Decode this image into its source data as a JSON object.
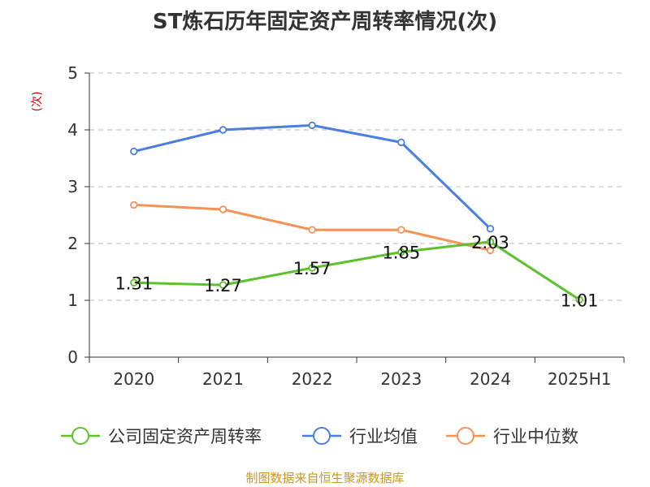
{
  "chart_data": {
    "type": "line",
    "title": "ST炼石历年固定资产周转率情况(次)",
    "ylabel": "(次)",
    "xlabel": "",
    "categories": [
      "2020",
      "2021",
      "2022",
      "2023",
      "2024",
      "2025H1"
    ],
    "ylim": [
      0,
      5
    ],
    "yticks": [
      "0",
      "1",
      "2",
      "3",
      "4",
      "5"
    ],
    "grid": true,
    "legend_position": "bottom",
    "series": [
      {
        "name": "公司固定资产周转率",
        "color": "#5cc12a",
        "values": [
          1.31,
          1.27,
          1.57,
          1.85,
          2.03,
          1.01
        ],
        "labels": [
          "1.31",
          "1.27",
          "1.57",
          "1.85",
          "2.03",
          "1.01"
        ]
      },
      {
        "name": "行业均值",
        "color": "#4a7fe0",
        "values": [
          3.62,
          4.0,
          4.08,
          3.78,
          2.26,
          null
        ]
      },
      {
        "name": "行业中位数",
        "color": "#f59256",
        "values": [
          2.68,
          2.6,
          2.24,
          2.24,
          1.88,
          null
        ]
      }
    ],
    "source": "制图数据来自恒生聚源数据库"
  }
}
